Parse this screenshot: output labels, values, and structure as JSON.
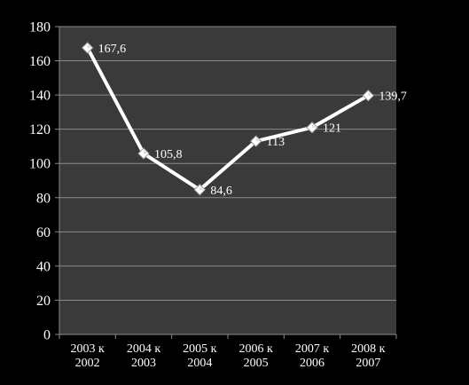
{
  "chart_data": {
    "type": "line",
    "title": "",
    "xlabel": "",
    "ylabel": "",
    "ylim": [
      0,
      180
    ],
    "y_ticks": [
      0,
      20,
      40,
      60,
      80,
      100,
      120,
      140,
      160,
      180
    ],
    "categories": [
      [
        "2003 к",
        "2002"
      ],
      [
        "2004 к",
        "2003"
      ],
      [
        "2005 к",
        "2004"
      ],
      [
        "2006 к",
        "2005"
      ],
      [
        "2007 к",
        "2006"
      ],
      [
        "2008 к",
        "2007"
      ]
    ],
    "series": [
      {
        "values": [
          167.6,
          105.8,
          84.6,
          113,
          121,
          139.7
        ],
        "data_labels": [
          "167,6",
          "105,8",
          "84,6",
          "113",
          "121",
          "139,7"
        ]
      }
    ],
    "grid": true,
    "legend": "none",
    "colors": {
      "background": "#000000",
      "plot_area": "#3a3a3a",
      "gridline": "#8a8a8a",
      "line": "#ffffff",
      "marker": "#ffffff"
    }
  }
}
